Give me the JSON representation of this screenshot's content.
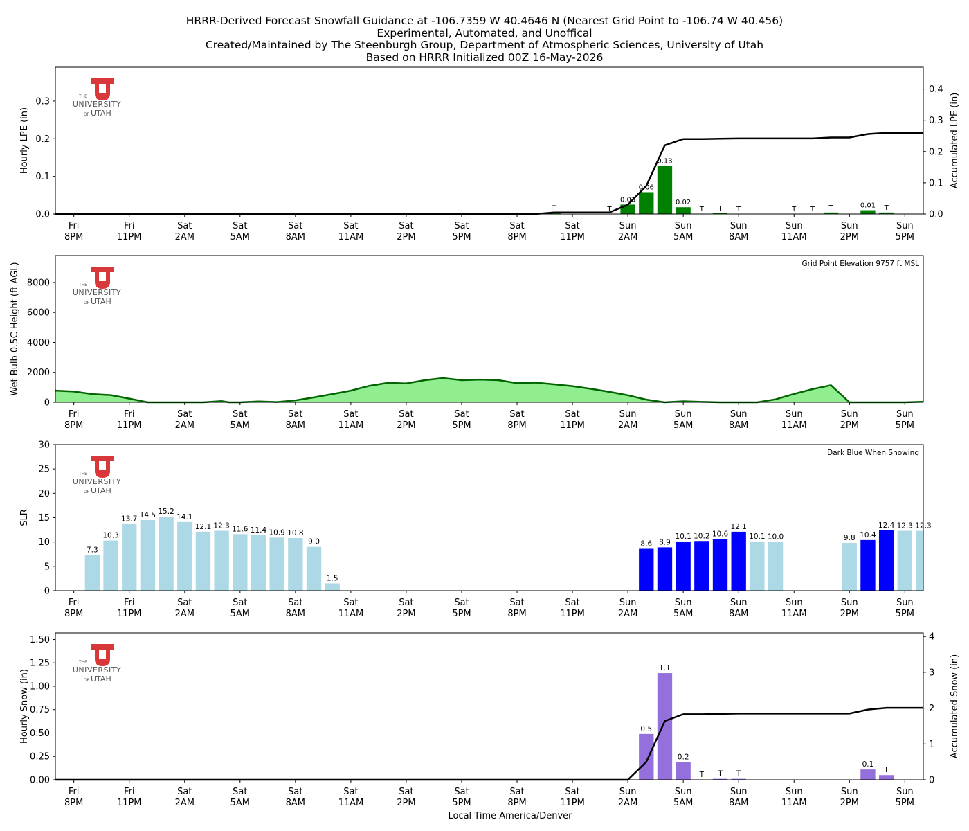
{
  "header": {
    "line1": "HRRR-Derived Forecast Snowfall Guidance at -106.7359 W 40.4646 N (Nearest Grid Point to -106.74 W 40.456)",
    "line2": "Experimental, Automated, and Unoffical",
    "line3": "Created/Maintained by The Steenburgh Group, Department of Atmospheric Sciences, University of Utah",
    "line4": "Based on HRRR Initialized 00Z 16-May-2026"
  },
  "logo": {
    "the": "THE",
    "university": "UNIVERSITY",
    "of": "OF",
    "utah": "UTAH",
    "color": "#d9383a"
  },
  "colors": {
    "lpe_bar": "#008000",
    "accum_line": "#000000",
    "wetbulb_fill": "#90ee90",
    "wetbulb_line": "#006400",
    "slr_light": "#add8e6",
    "slr_snowing": "#0000ff",
    "snow_bar": "#9370db"
  },
  "chart_data": [
    {
      "type": "bar",
      "id": "lpe",
      "ylabel": "Hourly LPE (in)",
      "y2label": "Accumulated LPE (in)",
      "ylim": [
        0,
        0.39
      ],
      "y2lim": [
        0,
        0.47
      ],
      "yticks": [
        "0.0",
        "0.1",
        "0.2",
        "0.3"
      ],
      "y2ticks": [
        "0.0",
        "0.1",
        "0.2",
        "0.3",
        "0.4"
      ],
      "xticks": [
        "Fri 8PM",
        "Fri 11PM",
        "Sat 2AM",
        "Sat 5AM",
        "Sat 8AM",
        "Sat 11AM",
        "Sat 2PM",
        "Sat 5PM",
        "Sat 8PM",
        "Sat 11PM",
        "Sun 2AM",
        "Sun 5AM",
        "Sun 8AM",
        "Sun 11AM",
        "Sun 2PM",
        "Sun 5PM"
      ],
      "bars": [
        {
          "hour": 26,
          "value": 0.003,
          "label": "T"
        },
        {
          "hour": 29,
          "value": 0.0,
          "label": "T"
        },
        {
          "hour": 30,
          "value": 0.025,
          "label": "0.03"
        },
        {
          "hour": 31,
          "value": 0.058,
          "label": "0.06"
        },
        {
          "hour": 32,
          "value": 0.128,
          "label": "0.13"
        },
        {
          "hour": 33,
          "value": 0.018,
          "label": "0.02"
        },
        {
          "hour": 34,
          "value": 0.0,
          "label": "T"
        },
        {
          "hour": 35,
          "value": 0.002,
          "label": "T"
        },
        {
          "hour": 36,
          "value": 0.0,
          "label": "T"
        },
        {
          "hour": 39,
          "value": 0.0,
          "label": "T"
        },
        {
          "hour": 40,
          "value": 0.0,
          "label": "T"
        },
        {
          "hour": 41,
          "value": 0.004,
          "label": "T"
        },
        {
          "hour": 43,
          "value": 0.01,
          "label": "0.01"
        },
        {
          "hour": 44,
          "value": 0.004,
          "label": "T"
        }
      ],
      "accum": [
        [
          -1,
          0
        ],
        [
          25,
          0
        ],
        [
          26,
          0.005
        ],
        [
          29,
          0.005
        ],
        [
          30,
          0.03
        ],
        [
          31,
          0.09
        ],
        [
          32,
          0.22
        ],
        [
          33,
          0.24
        ],
        [
          34,
          0.24
        ],
        [
          35,
          0.241
        ],
        [
          36,
          0.242
        ],
        [
          40,
          0.242
        ],
        [
          41,
          0.245
        ],
        [
          42,
          0.245
        ],
        [
          43,
          0.256
        ],
        [
          44,
          0.26
        ],
        [
          46,
          0.26
        ]
      ]
    },
    {
      "type": "area",
      "id": "wetbulb",
      "ylabel": "Wet Bulb 0.5C Height (ft AGL)",
      "annotation": "Grid Point Elevation 9757 ft MSL",
      "ylim": [
        0,
        9800
      ],
      "yticks": [
        "0",
        "2000",
        "4000",
        "6000",
        "8000"
      ],
      "xticks": [
        "Fri 8PM",
        "Fri 11PM",
        "Sat 2AM",
        "Sat 5AM",
        "Sat 8AM",
        "Sat 11AM",
        "Sat 2PM",
        "Sat 5PM",
        "Sat 8PM",
        "Sat 11PM",
        "Sun 2AM",
        "Sun 5AM",
        "Sun 8AM",
        "Sun 11AM",
        "Sun 2PM",
        "Sun 5PM"
      ],
      "series": [
        [
          -1,
          780
        ],
        [
          0,
          720
        ],
        [
          1,
          550
        ],
        [
          2,
          480
        ],
        [
          3,
          250
        ],
        [
          4,
          0
        ],
        [
          5,
          0
        ],
        [
          6,
          0
        ],
        [
          7,
          0
        ],
        [
          8,
          80
        ],
        [
          8.4,
          0
        ],
        [
          9,
          0
        ],
        [
          10,
          60
        ],
        [
          11,
          20
        ],
        [
          12,
          130
        ],
        [
          13,
          330
        ],
        [
          14,
          550
        ],
        [
          15,
          780
        ],
        [
          16,
          1100
        ],
        [
          17,
          1300
        ],
        [
          18,
          1260
        ],
        [
          19,
          1480
        ],
        [
          20,
          1620
        ],
        [
          21,
          1480
        ],
        [
          22,
          1520
        ],
        [
          23,
          1480
        ],
        [
          24,
          1280
        ],
        [
          25,
          1320
        ],
        [
          26,
          1200
        ],
        [
          27,
          1080
        ],
        [
          28,
          900
        ],
        [
          29,
          700
        ],
        [
          30,
          470
        ],
        [
          31,
          180
        ],
        [
          32,
          0
        ],
        [
          33,
          70
        ],
        [
          34,
          30
        ],
        [
          35,
          0
        ],
        [
          36,
          0
        ],
        [
          37,
          0
        ],
        [
          38,
          200
        ],
        [
          39,
          560
        ],
        [
          40,
          880
        ],
        [
          41,
          1140
        ],
        [
          42,
          0
        ],
        [
          43,
          0
        ],
        [
          44,
          0
        ],
        [
          45,
          0
        ],
        [
          46,
          40
        ]
      ]
    },
    {
      "type": "bar",
      "id": "slr",
      "ylabel": "SLR",
      "annotation": "Dark Blue When Snowing",
      "ylim": [
        0,
        30
      ],
      "yticks": [
        "0",
        "5",
        "10",
        "15",
        "20",
        "25",
        "30"
      ],
      "xticks": [
        "Fri 8PM",
        "Fri 11PM",
        "Sat 2AM",
        "Sat 5AM",
        "Sat 8AM",
        "Sat 11AM",
        "Sat 2PM",
        "Sat 5PM",
        "Sat 8PM",
        "Sat 11PM",
        "Sun 2AM",
        "Sun 5AM",
        "Sun 8AM",
        "Sun 11AM",
        "Sun 2PM",
        "Sun 5PM"
      ],
      "bars": [
        {
          "hour": 1,
          "value": 7.3,
          "label": "7.3",
          "snowing": false
        },
        {
          "hour": 2,
          "value": 10.3,
          "label": "10.3",
          "snowing": false
        },
        {
          "hour": 3,
          "value": 13.7,
          "label": "13.7",
          "snowing": false
        },
        {
          "hour": 4,
          "value": 14.5,
          "label": "14.5",
          "snowing": false
        },
        {
          "hour": 5,
          "value": 15.2,
          "label": "15.2",
          "snowing": false
        },
        {
          "hour": 6,
          "value": 14.1,
          "label": "14.1",
          "snowing": false
        },
        {
          "hour": 7,
          "value": 12.1,
          "label": "12.1",
          "snowing": false
        },
        {
          "hour": 8,
          "value": 12.3,
          "label": "12.3",
          "snowing": false
        },
        {
          "hour": 9,
          "value": 11.6,
          "label": "11.6",
          "snowing": false
        },
        {
          "hour": 10,
          "value": 11.4,
          "label": "11.4",
          "snowing": false
        },
        {
          "hour": 11,
          "value": 10.9,
          "label": "10.9",
          "snowing": false
        },
        {
          "hour": 12,
          "value": 10.8,
          "label": "10.8",
          "snowing": false
        },
        {
          "hour": 13,
          "value": 9.0,
          "label": "9.0",
          "snowing": false
        },
        {
          "hour": 14,
          "value": 1.5,
          "label": "1.5",
          "snowing": false
        },
        {
          "hour": 31,
          "value": 8.6,
          "label": "8.6",
          "snowing": true
        },
        {
          "hour": 32,
          "value": 8.9,
          "label": "8.9",
          "snowing": true
        },
        {
          "hour": 33,
          "value": 10.1,
          "label": "10.1",
          "snowing": true
        },
        {
          "hour": 34,
          "value": 10.2,
          "label": "10.2",
          "snowing": true
        },
        {
          "hour": 35,
          "value": 10.6,
          "label": "10.6",
          "snowing": true
        },
        {
          "hour": 36,
          "value": 12.1,
          "label": "12.1",
          "snowing": true
        },
        {
          "hour": 37,
          "value": 10.1,
          "label": "10.1",
          "snowing": false
        },
        {
          "hour": 38,
          "value": 10.0,
          "label": "10.0",
          "snowing": false
        },
        {
          "hour": 42,
          "value": 9.8,
          "label": "9.8",
          "snowing": false
        },
        {
          "hour": 43,
          "value": 10.4,
          "label": "10.4",
          "snowing": true
        },
        {
          "hour": 44,
          "value": 12.4,
          "label": "12.4",
          "snowing": true
        },
        {
          "hour": 45,
          "value": 12.3,
          "label": "12.3",
          "snowing": false
        },
        {
          "hour": 46,
          "value": 12.3,
          "label": "12.3",
          "snowing": false
        }
      ]
    },
    {
      "type": "bar",
      "id": "snow",
      "ylabel": "Hourly Snow (in)",
      "y2label": "Accumulated Snow (in)",
      "xlabel": "Local Time America/Denver",
      "ylim": [
        0,
        1.57
      ],
      "y2lim": [
        0,
        4.1
      ],
      "yticks": [
        "0.00",
        "0.25",
        "0.50",
        "0.75",
        "1.00",
        "1.25",
        "1.50"
      ],
      "y2ticks": [
        "0",
        "1",
        "2",
        "3",
        "4"
      ],
      "xticks": [
        "Fri 8PM",
        "Fri 11PM",
        "Sat 2AM",
        "Sat 5AM",
        "Sat 8AM",
        "Sat 11AM",
        "Sat 2PM",
        "Sat 5PM",
        "Sat 8PM",
        "Sat 11PM",
        "Sun 2AM",
        "Sun 5AM",
        "Sun 8AM",
        "Sun 11AM",
        "Sun 2PM",
        "Sun 5PM"
      ],
      "bars": [
        {
          "hour": 31,
          "value": 0.49,
          "label": "0.5"
        },
        {
          "hour": 32,
          "value": 1.14,
          "label": "1.1"
        },
        {
          "hour": 33,
          "value": 0.19,
          "label": "0.2"
        },
        {
          "hour": 34,
          "value": 0.0,
          "label": "T"
        },
        {
          "hour": 35,
          "value": 0.01,
          "label": "T"
        },
        {
          "hour": 36,
          "value": 0.01,
          "label": "T"
        },
        {
          "hour": 43,
          "value": 0.11,
          "label": "0.1"
        },
        {
          "hour": 44,
          "value": 0.05,
          "label": "T"
        }
      ],
      "accum": [
        [
          -1,
          0
        ],
        [
          30,
          0
        ],
        [
          31,
          0.5
        ],
        [
          32,
          1.64
        ],
        [
          33,
          1.83
        ],
        [
          34,
          1.83
        ],
        [
          35,
          1.84
        ],
        [
          36,
          1.85
        ],
        [
          42,
          1.85
        ],
        [
          43,
          1.96
        ],
        [
          44,
          2.01
        ],
        [
          46,
          2.01
        ]
      ]
    }
  ]
}
